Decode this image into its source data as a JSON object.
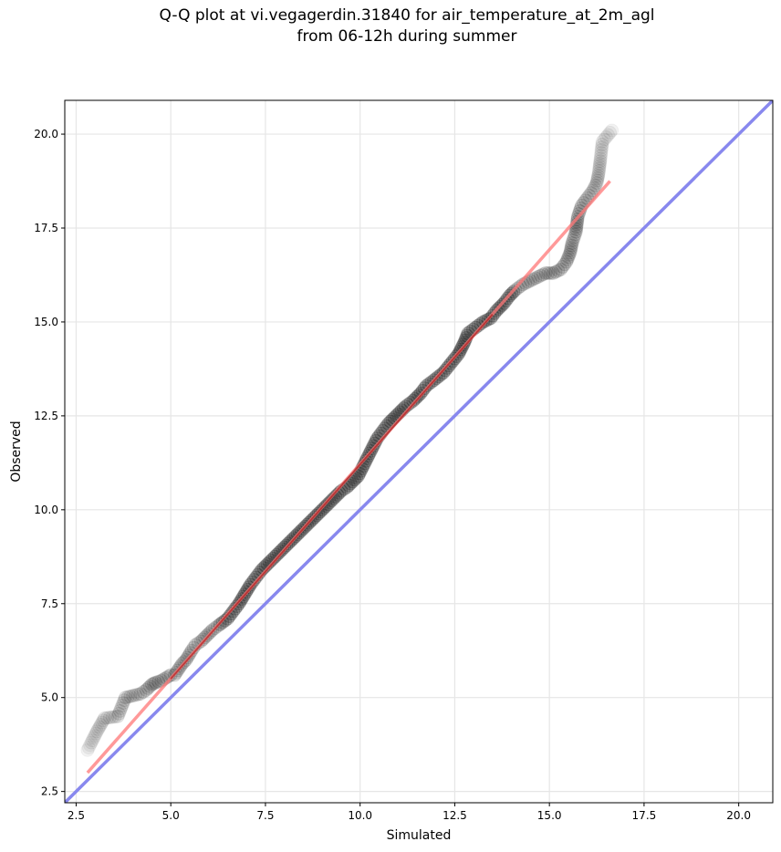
{
  "chart_data": {
    "type": "scatter",
    "title_line1": "Q-Q plot at vi.vegagerdin.31840 for air_temperature_at_2m_agl",
    "title_line2": "from 06-12h during summer",
    "xlabel": "Simulated",
    "ylabel": "Observed",
    "xlim": [
      2.2,
      20.9
    ],
    "ylim": [
      2.2,
      20.9
    ],
    "xticks": [
      "2.5",
      "5.0",
      "7.5",
      "10.0",
      "12.5",
      "15.0",
      "17.5",
      "20.0"
    ],
    "yticks": [
      "2.5",
      "5.0",
      "7.5",
      "10.0",
      "12.5",
      "15.0",
      "17.5",
      "20.0"
    ],
    "grid": true,
    "colors": {
      "points": "#000000",
      "fit_line": "#ff7777",
      "identity_line": "#8888ee",
      "fit_inner": "#990000"
    },
    "identity_line": {
      "x": [
        2.2,
        20.9
      ],
      "y": [
        2.2,
        20.9
      ]
    },
    "fit_line": {
      "x": [
        2.8,
        16.6
      ],
      "y": [
        3.0,
        18.75
      ]
    },
    "series": [
      {
        "points": [
          [
            2.8,
            3.6
          ],
          [
            2.9,
            3.8
          ],
          [
            3.05,
            4.1
          ],
          [
            3.25,
            4.45
          ],
          [
            3.6,
            4.5
          ],
          [
            3.8,
            5.0
          ],
          [
            4.2,
            5.1
          ],
          [
            4.35,
            5.2
          ],
          [
            4.5,
            5.35
          ],
          [
            4.6,
            5.4
          ],
          [
            4.75,
            5.45
          ],
          [
            5.0,
            5.6
          ],
          [
            5.1,
            5.6
          ],
          [
            5.3,
            5.9
          ],
          [
            5.4,
            6.0
          ],
          [
            5.55,
            6.25
          ],
          [
            5.65,
            6.4
          ],
          [
            5.8,
            6.5
          ],
          [
            5.95,
            6.65
          ],
          [
            6.1,
            6.8
          ],
          [
            6.3,
            6.95
          ],
          [
            6.5,
            7.1
          ],
          [
            6.65,
            7.3
          ],
          [
            6.8,
            7.5
          ],
          [
            6.95,
            7.75
          ],
          [
            7.1,
            8.0
          ],
          [
            7.25,
            8.2
          ],
          [
            7.4,
            8.4
          ],
          [
            7.55,
            8.55
          ],
          [
            7.7,
            8.7
          ],
          [
            7.85,
            8.85
          ],
          [
            8.0,
            9.0
          ],
          [
            8.15,
            9.15
          ],
          [
            8.3,
            9.3
          ],
          [
            8.45,
            9.45
          ],
          [
            8.6,
            9.6
          ],
          [
            8.75,
            9.75
          ],
          [
            8.9,
            9.9
          ],
          [
            9.05,
            10.05
          ],
          [
            9.2,
            10.2
          ],
          [
            9.35,
            10.35
          ],
          [
            9.5,
            10.5
          ],
          [
            9.65,
            10.6
          ],
          [
            9.8,
            10.75
          ],
          [
            9.95,
            10.9
          ],
          [
            10.05,
            11.1
          ],
          [
            10.15,
            11.3
          ],
          [
            10.25,
            11.5
          ],
          [
            10.35,
            11.7
          ],
          [
            10.45,
            11.9
          ],
          [
            10.6,
            12.1
          ],
          [
            10.75,
            12.3
          ],
          [
            10.9,
            12.45
          ],
          [
            11.05,
            12.6
          ],
          [
            11.2,
            12.75
          ],
          [
            11.4,
            12.9
          ],
          [
            11.6,
            13.1
          ],
          [
            11.75,
            13.3
          ],
          [
            11.95,
            13.45
          ],
          [
            12.2,
            13.65
          ],
          [
            12.4,
            13.9
          ],
          [
            12.6,
            14.15
          ],
          [
            12.75,
            14.45
          ],
          [
            12.85,
            14.7
          ],
          [
            13.05,
            14.85
          ],
          [
            13.25,
            15.0
          ],
          [
            13.45,
            15.1
          ],
          [
            13.6,
            15.3
          ],
          [
            13.8,
            15.5
          ],
          [
            13.95,
            15.7
          ],
          [
            14.1,
            15.85
          ],
          [
            14.3,
            16.0
          ],
          [
            14.5,
            16.1
          ],
          [
            14.7,
            16.2
          ],
          [
            14.9,
            16.3
          ],
          [
            15.1,
            16.3
          ],
          [
            15.3,
            16.4
          ],
          [
            15.45,
            16.6
          ],
          [
            15.55,
            16.85
          ],
          [
            15.6,
            17.1
          ],
          [
            15.7,
            17.4
          ],
          [
            15.75,
            17.8
          ],
          [
            15.85,
            18.1
          ],
          [
            16.0,
            18.3
          ],
          [
            16.15,
            18.5
          ],
          [
            16.25,
            18.7
          ],
          [
            16.3,
            18.95
          ],
          [
            16.35,
            19.35
          ],
          [
            16.4,
            19.8
          ],
          [
            16.65,
            20.1
          ]
        ]
      }
    ]
  }
}
